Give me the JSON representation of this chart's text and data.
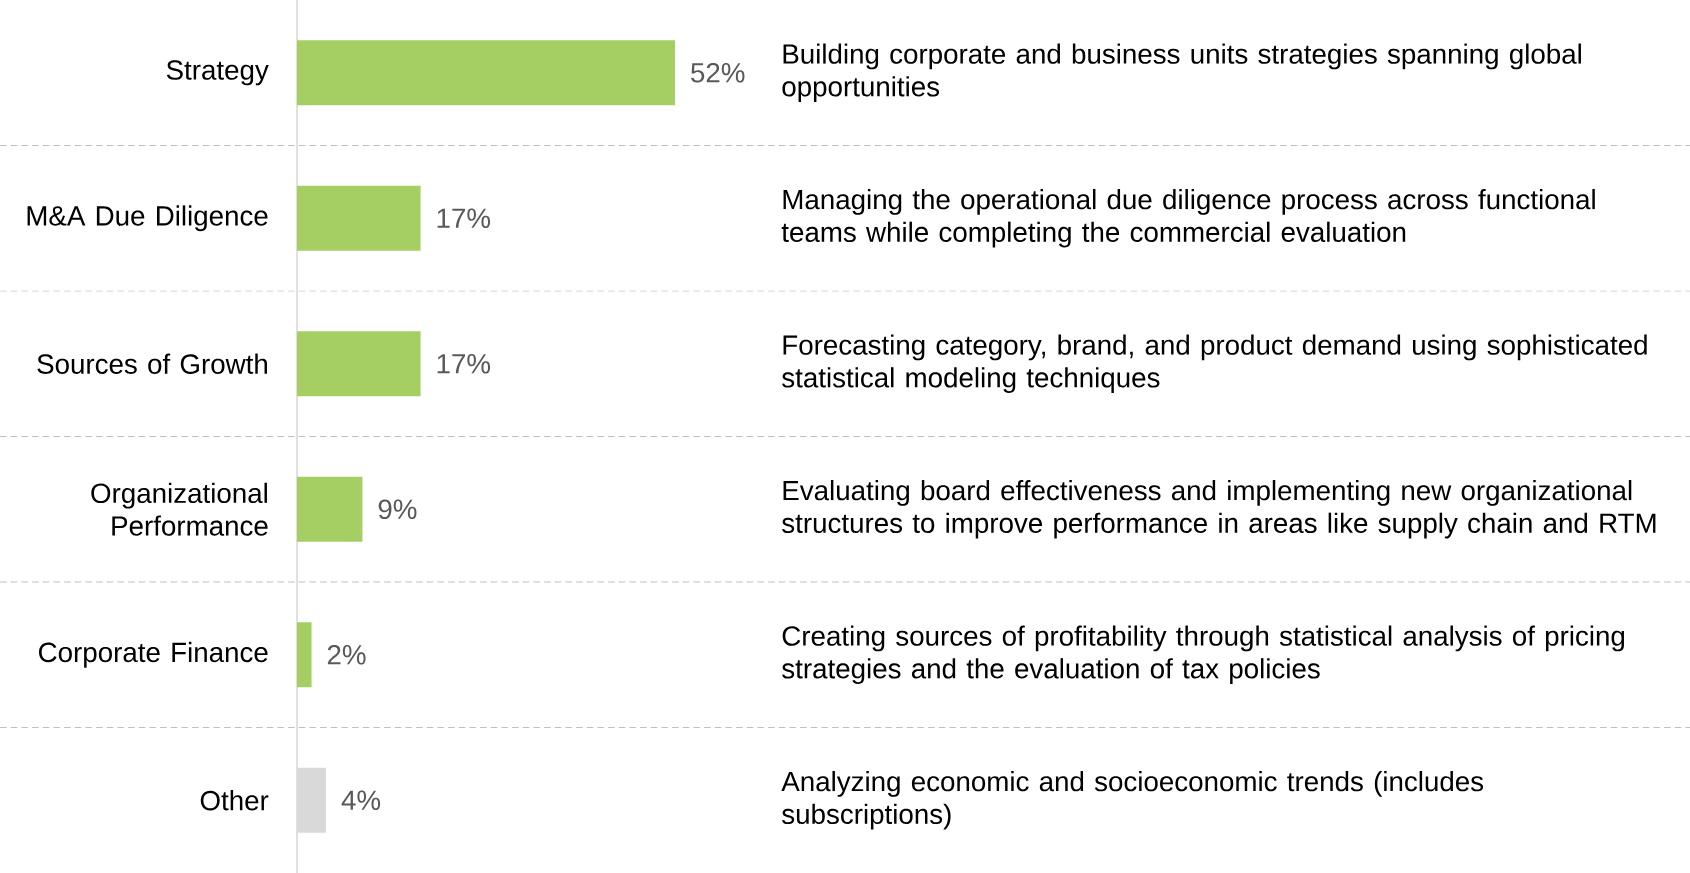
{
  "chart_data": {
    "type": "bar",
    "orientation": "horizontal",
    "tick_labels": "y",
    "categories": [
      "Strategy",
      "M&A Due Diligence",
      "Sources of Growth",
      "Organizational Performance",
      "Corporate Finance",
      "Other"
    ],
    "values": [
      52,
      17,
      17,
      9,
      2,
      4
    ],
    "colors": [
      "#a5cf62",
      "#a5cf62",
      "#a5cf62",
      "#a5cf62",
      "#a5cf62",
      "#d9d9d9"
    ],
    "value_labels": [
      "52%",
      "17%",
      "17%",
      "9%",
      "2%",
      "4%"
    ],
    "annotations": [
      "Building corporate and business units strategies spanning global opportunities",
      "Managing the operational due diligence process across functional teams while completing the commercial evaluation",
      "Forecasting category, brand, and product demand using sophisticated statistical modeling techniques",
      "Evaluating board effectiveness and implementing new organizational structures to improve performance in areas like supply chain and RTM",
      "Creating sources of profitability through statistical analysis of pricing strategies and the evaluation of tax policies",
      "Analyzing economic and socioeconomic trends (includes subscriptions)"
    ]
  }
}
